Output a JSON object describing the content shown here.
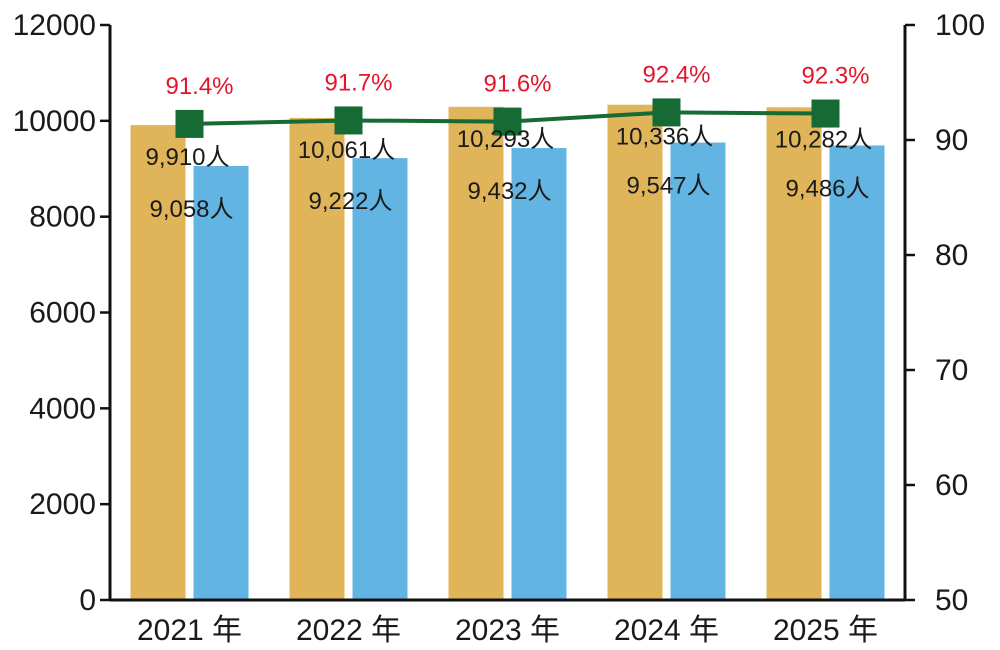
{
  "chart_data": {
    "type": "bar",
    "categories": [
      "2021 年",
      "2022 年",
      "2023 年",
      "2024 年",
      "2025 年"
    ],
    "series": [
      {
        "values": [
          9910,
          10061,
          10293,
          10336,
          10282
        ],
        "labels": [
          "9,910人",
          "10,061人",
          "10,293人",
          "10,336人",
          "10,282人"
        ],
        "color": "#e0b458",
        "axis": "left"
      },
      {
        "values": [
          9058,
          9222,
          9432,
          9547,
          9486
        ],
        "labels": [
          "9,058人",
          "9,222人",
          "9,432人",
          "9,547人",
          "9,486人"
        ],
        "color": "#62b4e2",
        "axis": "left"
      },
      {
        "type": "line",
        "values": [
          91.4,
          91.7,
          91.6,
          92.4,
          92.3
        ],
        "labels": [
          "91.4%",
          "91.7%",
          "91.6%",
          "92.4%",
          "92.3%"
        ],
        "color": "#166b35",
        "marker": "square",
        "axis": "right"
      }
    ],
    "y_left": {
      "ylim": [
        0,
        12000
      ],
      "ticks": [
        "0",
        "2000",
        "4000",
        "6000",
        "8000",
        "10000",
        "12000"
      ]
    },
    "y_right": {
      "ylim": [
        50,
        100
      ],
      "ticks": [
        "50",
        "60",
        "70",
        "80",
        "90",
        "100"
      ]
    },
    "percent_label_color": "#e2162b",
    "grid": false,
    "legend": "none",
    "title": "",
    "xlabel": "",
    "ylabel": ""
  }
}
